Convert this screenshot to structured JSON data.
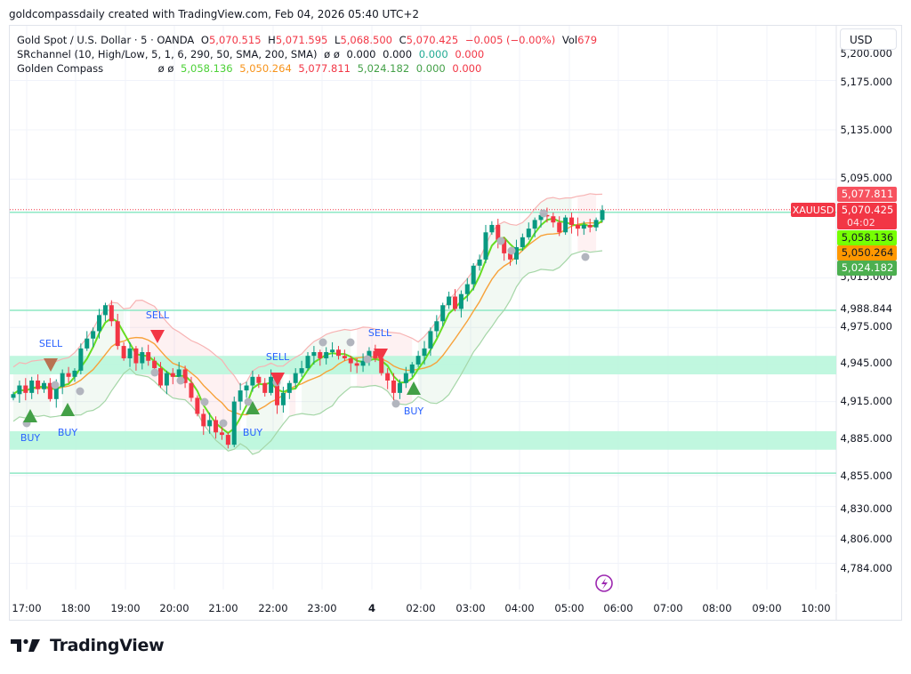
{
  "caption": "goldcompassdaily created with TradingView.com, Feb 04, 2026 05:40 UTC+2",
  "legend": {
    "symbol_line": {
      "title": "Gold Spot / U.S. Dollar · 5 · OANDA",
      "open_label": "O",
      "open": "5,070.515",
      "high_label": "H",
      "high": "5,071.595",
      "low_label": "L",
      "low": "5,068.500",
      "close_label": "C",
      "close": "5,070.425",
      "change": "−0.005 (−0.00%)",
      "vol_label": "Vol",
      "vol": "679"
    },
    "srchannel_line": {
      "title": "SRchannel (10, High/Low, 5, 1, 6, 290, 50, SMA, 200, SMA)",
      "flags": "ø ø",
      "v1": "0.000",
      "v2": "0.000",
      "v3": "0.000",
      "v4": "0.000"
    },
    "golden_compass_line": {
      "title": "Golden Compass",
      "flags": "ø ø",
      "v1": "5,058.136",
      "v2": "5,050.264",
      "v3": "5,077.811",
      "v4": "5,024.182",
      "v5": "0.000",
      "v6": "0.000"
    }
  },
  "currency_button": "USD",
  "symbol_tag": "XAUUSD",
  "price_tags": {
    "upper_band": {
      "value": "5,077.811",
      "color": "#f7525f"
    },
    "last_price": {
      "value": "5,070.425",
      "countdown": "04:02",
      "color": "#f23645"
    },
    "fast_line": {
      "value": "5,058.136",
      "color": "#76ff03"
    },
    "slow_line": {
      "value": "5,050.264",
      "color": "#ff9800"
    },
    "lower_band": {
      "value": "5,024.182",
      "color": "#4caf50"
    }
  },
  "y_axis_labels": [
    "5,200.000",
    "5,175.000",
    "5,135.000",
    "5,095.000",
    "5,015.000",
    "4,988.844",
    "4,975.000",
    "4,945.000",
    "4,915.000",
    "4,885.000",
    "4,855.000",
    "4,830.000",
    "4,806.000",
    "4,784.000"
  ],
  "x_axis_labels": [
    "17:00",
    "18:00",
    "19:00",
    "20:00",
    "21:00",
    "22:00",
    "23:00",
    "4",
    "02:00",
    "03:00",
    "04:00",
    "05:00",
    "06:00",
    "07:00",
    "08:00",
    "09:00",
    "10:00"
  ],
  "signals": {
    "sell_label": "SELL",
    "buy_label": "BUY"
  },
  "footer": {
    "brand": "TradingView"
  },
  "colors": {
    "up": "#089981",
    "down": "#f23645",
    "fast": "#66dd22",
    "slow": "#f7a23a",
    "sr_zone": "#b9f6dc",
    "sr_line": "#8ee8c4",
    "band_upper": "#f7b3b3",
    "band_lower": "#a5d6a7",
    "buy_marker": "#43a047",
    "sell_marker_red": "#f23645",
    "sell_marker_brown": "#b87352",
    "signal_text": "#2962ff"
  },
  "chart_data": {
    "type": "candlestick",
    "title": "Gold Spot / U.S. Dollar · 5 · OANDA",
    "timeframe": "5 min",
    "x_ticks": [
      "17:00",
      "18:00",
      "19:00",
      "20:00",
      "21:00",
      "22:00",
      "23:00",
      "4",
      "02:00",
      "03:00",
      "04:00",
      "05:00",
      "06:00",
      "07:00",
      "08:00",
      "09:00",
      "10:00"
    ],
    "ylim": [
      4775,
      5205
    ],
    "last": {
      "open": 5070.515,
      "high": 5071.595,
      "low": 5068.5,
      "close": 5070.425,
      "change": -0.005,
      "change_pct": -0.0,
      "volume": 679
    },
    "indicators": {
      "golden_compass": {
        "fast": 5058.136,
        "slow": 5050.264,
        "upper_band": 5077.811,
        "lower_band": 5024.182
      },
      "srchannel_zones": [
        [
          4937,
          4952
        ],
        [
          4876,
          4891
        ]
      ],
      "sr_lines": [
        5068.2,
        4988.844,
        4857
      ]
    },
    "closes_approx": [
      4921,
      4928,
      4922,
      4932,
      4925,
      4930,
      4917,
      4927,
      4938,
      4935,
      4940,
      4958,
      4966,
      4972,
      4985,
      4993,
      4980,
      4960,
      4950,
      4958,
      4946,
      4955,
      4948,
      4942,
      4928,
      4938,
      4935,
      4941,
      4930,
      4918,
      4905,
      4895,
      4900,
      4890,
      4888,
      4880,
      4915,
      4924,
      4928,
      4935,
      4930,
      4922,
      4935,
      4912,
      4922,
      4930,
      4938,
      4942,
      4952,
      4955,
      4950,
      4955,
      4957,
      4952,
      4950,
      4946,
      4944,
      4948,
      4956,
      4950,
      4938,
      4932,
      4922,
      4930,
      4938,
      4945,
      4952,
      4958,
      4972,
      4980,
      4993,
      5000,
      4990,
      5002,
      5010,
      5025,
      5030,
      5052,
      5058,
      5046,
      5035,
      5030,
      5040,
      5048,
      5055,
      5062,
      5066,
      5065,
      5060,
      5052,
      5064,
      5058,
      5055,
      5058,
      5056,
      5062,
      5070
    ],
    "signals": [
      {
        "type": "BUY",
        "time": "17:00"
      },
      {
        "type": "SELL",
        "time": "17:30"
      },
      {
        "type": "BUY",
        "time": "17:45"
      },
      {
        "type": "SELL",
        "time": "19:40"
      },
      {
        "type": "BUY",
        "time": "21:35"
      },
      {
        "type": "SELL",
        "time": "22:05"
      },
      {
        "type": "SELL",
        "time": "01:05"
      },
      {
        "type": "BUY",
        "time": "01:50"
      }
    ]
  }
}
